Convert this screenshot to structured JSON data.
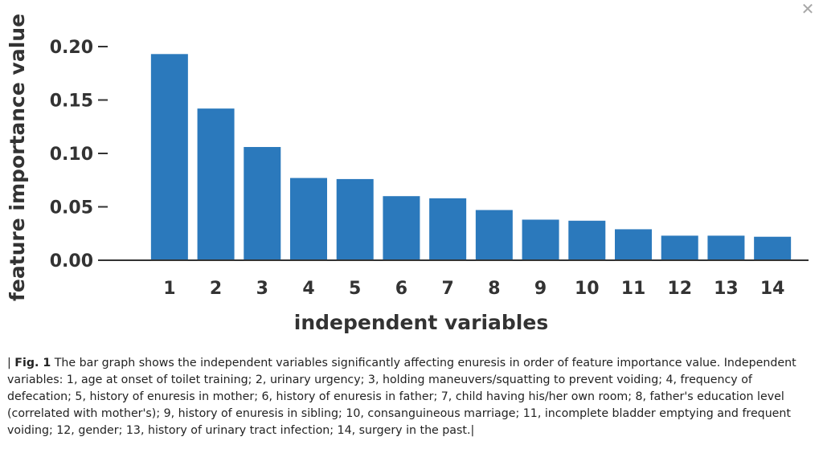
{
  "close_icon": "close-icon",
  "chart_data": {
    "type": "bar",
    "categories": [
      "1",
      "2",
      "3",
      "4",
      "5",
      "6",
      "7",
      "8",
      "9",
      "10",
      "11",
      "12",
      "13",
      "14"
    ],
    "values": [
      0.193,
      0.142,
      0.106,
      0.077,
      0.076,
      0.06,
      0.058,
      0.047,
      0.038,
      0.037,
      0.029,
      0.023,
      0.023,
      0.022
    ],
    "y_ticks": [
      "0.00",
      "0.05",
      "0.10",
      "0.15",
      "0.20"
    ],
    "ylim": [
      0,
      0.2
    ],
    "xlabel": "independent variables",
    "ylabel": "feature importance value",
    "bar_color": "#2b79bc",
    "grid": false
  },
  "caption": {
    "prefix": "| ",
    "fig_label": "Fig. 1",
    "text": " The bar graph shows the independent variables significantly affecting enuresis in order of feature importance value. Independent variables: 1, age at onset of toilet training; 2, urinary urgency; 3, holding maneuvers/squatting to prevent voiding; 4, frequency of defecation; 5, history of enuresis in mother; 6, history of enuresis in father; 7, child having his/her own room; 8, father's education level (correlated with mother's); 9, history of enuresis in sibling; 10, consanguineous marriage; 11, incomplete bladder emptying and frequent voiding; 12, gender; 13, history of urinary tract infection; 14, surgery in the past.|"
  }
}
